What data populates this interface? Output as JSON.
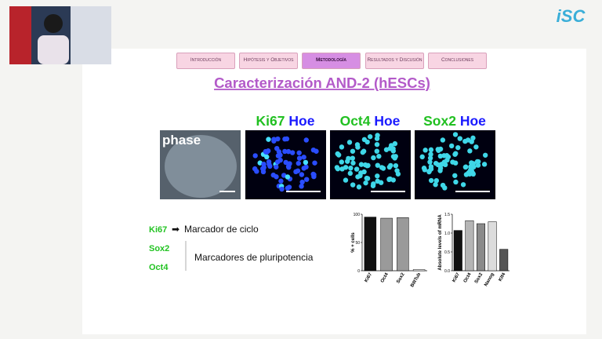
{
  "logo": "iSC",
  "nav": [
    "Introducción",
    "Hipótesis y Objetivos",
    "Metodología",
    "Resultados y Discusión",
    "Conclusiones"
  ],
  "title": "Caracterización AND-2 (hESCs)",
  "panels": [
    {
      "label": "phase"
    },
    {
      "marker": "Ki67",
      "stain": "Hoe"
    },
    {
      "marker": "Oct4",
      "stain": "Hoe"
    },
    {
      "marker": "Sox2",
      "stain": "Hoe"
    }
  ],
  "markers": [
    {
      "gene": "Ki67",
      "description": "Marcador de ciclo"
    },
    {
      "gene": "Sox2"
    },
    {
      "gene": "Oct4"
    }
  ],
  "pluripotency_label": "Marcadores de pluripotencia",
  "chart_data": [
    {
      "type": "bar",
      "ylabel": "% + cells",
      "categories": [
        "Ki67",
        "Oct4",
        "Sox2",
        "BIIITub"
      ],
      "values": [
        95,
        93,
        94,
        2
      ],
      "colors": [
        "#111111",
        "#9a9a9a",
        "#9a9a9a",
        "#ffffff"
      ],
      "ylim": [
        0,
        100
      ],
      "yticks": [
        0,
        50,
        100
      ]
    },
    {
      "type": "bar",
      "ylabel": "Absolute levels of mRNA",
      "categories": [
        "Ki67",
        "Oct4",
        "Sox2",
        "Nanog",
        "Klf4"
      ],
      "values": [
        1.07,
        1.33,
        1.25,
        1.3,
        0.57
      ],
      "colors": [
        "#111111",
        "#b5b5b5",
        "#8a8a8a",
        "#dcdcdc",
        "#555555"
      ],
      "ylim": [
        0,
        1.5
      ],
      "yticks": [
        {
          "value": 0,
          "label": "0.0"
        },
        {
          "value": 0.5,
          "label": "0.5"
        },
        {
          "value": 1,
          "label": "1.0"
        },
        {
          "value": 1.5,
          "label": "1.5"
        }
      ]
    }
  ]
}
